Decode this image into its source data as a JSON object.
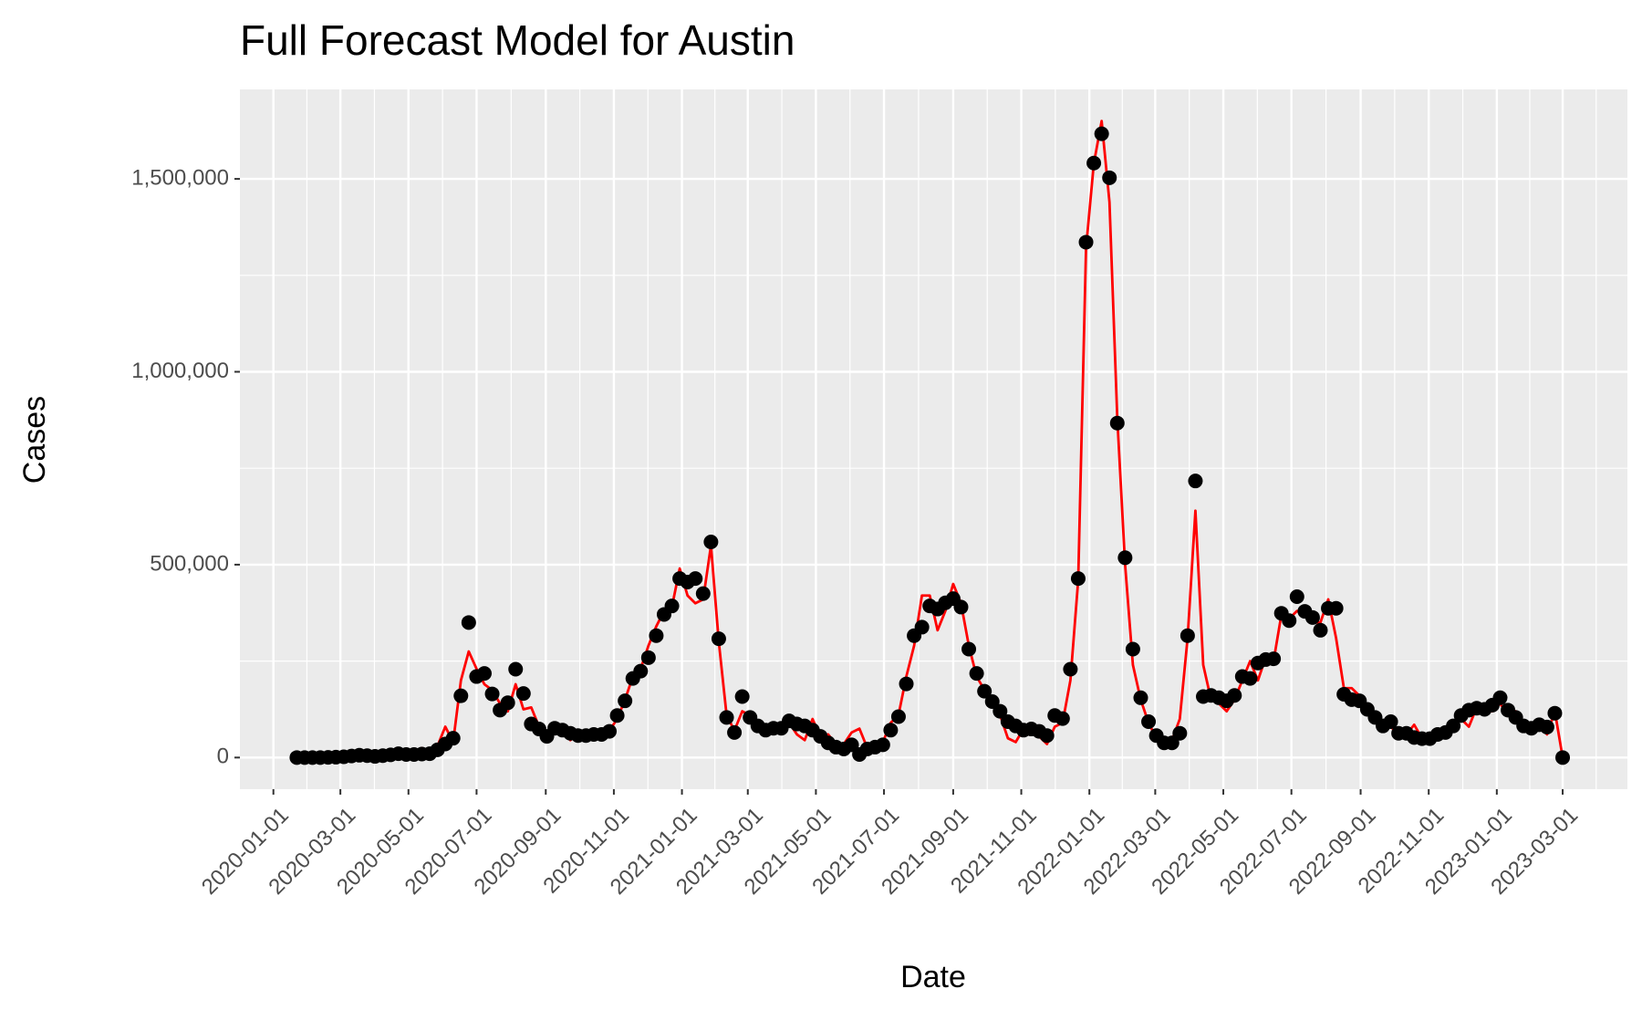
{
  "chart_data": {
    "type": "line",
    "title": "Full Forecast Model for Austin",
    "x_label": "Date",
    "y_label": "Cases",
    "x": [
      "2020-01-22",
      "2020-01-29",
      "2020-02-05",
      "2020-02-12",
      "2020-02-19",
      "2020-02-26",
      "2020-03-04",
      "2020-03-11",
      "2020-03-18",
      "2020-03-25",
      "2020-04-01",
      "2020-04-08",
      "2020-04-15",
      "2020-04-22",
      "2020-04-29",
      "2020-05-06",
      "2020-05-13",
      "2020-05-20",
      "2020-05-27",
      "2020-06-03",
      "2020-06-10",
      "2020-06-17",
      "2020-06-24",
      "2020-07-01",
      "2020-07-08",
      "2020-07-15",
      "2020-07-22",
      "2020-07-29",
      "2020-08-05",
      "2020-08-12",
      "2020-08-19",
      "2020-08-26",
      "2020-09-02",
      "2020-09-09",
      "2020-09-16",
      "2020-09-23",
      "2020-09-30",
      "2020-10-07",
      "2020-10-14",
      "2020-10-21",
      "2020-10-28",
      "2020-11-04",
      "2020-11-11",
      "2020-11-18",
      "2020-11-25",
      "2020-12-02",
      "2020-12-09",
      "2020-12-16",
      "2020-12-23",
      "2020-12-30",
      "2021-01-06",
      "2021-01-13",
      "2021-01-20",
      "2021-01-27",
      "2021-02-03",
      "2021-02-10",
      "2021-02-17",
      "2021-02-24",
      "2021-03-03",
      "2021-03-10",
      "2021-03-17",
      "2021-03-24",
      "2021-03-31",
      "2021-04-07",
      "2021-04-14",
      "2021-04-21",
      "2021-04-28",
      "2021-05-05",
      "2021-05-12",
      "2021-05-19",
      "2021-05-26",
      "2021-06-02",
      "2021-06-09",
      "2021-06-16",
      "2021-06-23",
      "2021-06-30",
      "2021-07-07",
      "2021-07-14",
      "2021-07-21",
      "2021-07-28",
      "2021-08-04",
      "2021-08-11",
      "2021-08-18",
      "2021-08-25",
      "2021-09-01",
      "2021-09-08",
      "2021-09-15",
      "2021-09-22",
      "2021-09-29",
      "2021-10-06",
      "2021-10-13",
      "2021-10-20",
      "2021-10-27",
      "2021-11-03",
      "2021-11-10",
      "2021-11-17",
      "2021-11-24",
      "2021-12-01",
      "2021-12-08",
      "2021-12-15",
      "2021-12-22",
      "2021-12-29",
      "2022-01-05",
      "2022-01-12",
      "2022-01-19",
      "2022-01-26",
      "2022-02-02",
      "2022-02-09",
      "2022-02-16",
      "2022-02-23",
      "2022-03-02",
      "2022-03-09",
      "2022-03-16",
      "2022-03-23",
      "2022-03-30",
      "2022-04-06",
      "2022-04-13",
      "2022-04-20",
      "2022-04-27",
      "2022-05-04",
      "2022-05-11",
      "2022-05-18",
      "2022-05-25",
      "2022-06-01",
      "2022-06-08",
      "2022-06-15",
      "2022-06-22",
      "2022-06-29",
      "2022-07-06",
      "2022-07-13",
      "2022-07-20",
      "2022-07-27",
      "2022-08-03",
      "2022-08-10",
      "2022-08-17",
      "2022-08-24",
      "2022-08-31",
      "2022-09-07",
      "2022-09-14",
      "2022-09-21",
      "2022-09-28",
      "2022-10-05",
      "2022-10-12",
      "2022-10-19",
      "2022-10-26",
      "2022-11-02",
      "2022-11-09",
      "2022-11-16",
      "2022-11-23",
      "2022-11-30",
      "2022-12-07",
      "2022-12-14",
      "2022-12-21",
      "2022-12-28",
      "2023-01-04",
      "2023-01-11",
      "2023-01-18",
      "2023-01-25",
      "2023-02-01",
      "2023-02-08",
      "2023-02-15",
      "2023-02-22",
      "2023-03-01"
    ],
    "series": [
      {
        "style": "line",
        "color": "#ff0000",
        "values": [
          0,
          0,
          0,
          0,
          0,
          2000,
          3000,
          5000,
          15000,
          8000,
          3000,
          5000,
          8000,
          12000,
          6000,
          10000,
          25000,
          8000,
          30000,
          80000,
          40000,
          200000,
          275000,
          230000,
          190000,
          175000,
          140000,
          120000,
          190000,
          125000,
          130000,
          80000,
          60000,
          65000,
          70000,
          45000,
          60000,
          55000,
          60000,
          55000,
          70000,
          100000,
          150000,
          210000,
          230000,
          290000,
          340000,
          380000,
          390000,
          490000,
          420000,
          400000,
          410000,
          550000,
          300000,
          110000,
          70000,
          120000,
          110000,
          90000,
          75000,
          80000,
          70000,
          90000,
          60000,
          45000,
          100000,
          55000,
          60000,
          35000,
          35000,
          65000,
          75000,
          25000,
          30000,
          40000,
          90000,
          110000,
          210000,
          290000,
          420000,
          420000,
          330000,
          380000,
          450000,
          400000,
          290000,
          210000,
          175000,
          150000,
          110000,
          50000,
          40000,
          75000,
          65000,
          55000,
          35000,
          80000,
          90000,
          200000,
          460000,
          1320000,
          1540000,
          1650000,
          1440000,
          880000,
          500000,
          240000,
          150000,
          90000,
          50000,
          40000,
          45000,
          100000,
          310000,
          640000,
          240000,
          150000,
          140000,
          120000,
          150000,
          200000,
          250000,
          200000,
          260000,
          250000,
          370000,
          360000,
          380000,
          370000,
          350000,
          350000,
          410000,
          310000,
          180000,
          180000,
          160000,
          120000,
          90000,
          80000,
          80000,
          60000,
          60000,
          85000,
          50000,
          50000,
          70000,
          80000,
          80000,
          100000,
          80000,
          130000,
          120000,
          120000,
          140000,
          110000,
          120000,
          80000,
          80000,
          90000,
          60000,
          120000,
          0
        ]
      },
      {
        "style": "points",
        "color": "#000000",
        "values": [
          0,
          0,
          0,
          0,
          500,
          1000,
          2000,
          4000,
          6000,
          5000,
          3000,
          5000,
          7000,
          10000,
          8000,
          8000,
          9000,
          10000,
          20000,
          35000,
          50000,
          160000,
          350000,
          210000,
          218000,
          165000,
          123000,
          142000,
          229000,
          166000,
          87000,
          74000,
          55000,
          76000,
          71000,
          63000,
          57000,
          57000,
          60000,
          60000,
          68000,
          109000,
          147000,
          205000,
          224000,
          259000,
          316000,
          371000,
          393000,
          464000,
          455000,
          464000,
          425000,
          559000,
          308000,
          104000,
          65000,
          158000,
          104000,
          82000,
          71000,
          76000,
          76000,
          95000,
          87000,
          82000,
          71000,
          55000,
          38000,
          27000,
          22000,
          33000,
          8000,
          22000,
          27000,
          33000,
          71000,
          106000,
          191000,
          316000,
          338000,
          393000,
          385000,
          401000,
          412000,
          390000,
          281000,
          218000,
          172000,
          145000,
          120000,
          93000,
          82000,
          71000,
          74000,
          68000,
          57000,
          109000,
          101000,
          229000,
          464000,
          1336000,
          1541000,
          1617000,
          1503000,
          867000,
          518000,
          281000,
          155000,
          93000,
          57000,
          38000,
          38000,
          63000,
          316000,
          717000,
          158000,
          161000,
          155000,
          147000,
          161000,
          210000,
          205000,
          245000,
          254000,
          256000,
          374000,
          355000,
          417000,
          379000,
          363000,
          330000,
          387000,
          387000,
          164000,
          150000,
          147000,
          125000,
          104000,
          82000,
          93000,
          63000,
          63000,
          52000,
          49000,
          49000,
          60000,
          65000,
          82000,
          109000,
          123000,
          128000,
          125000,
          136000,
          155000,
          123000,
          104000,
          82000,
          76000,
          85000,
          79000,
          115000,
          0
        ]
      }
    ],
    "xlim": [
      "2019-12-02",
      "2023-04-28"
    ],
    "xticks": [
      "2020-01-01",
      "2020-03-01",
      "2020-05-01",
      "2020-07-01",
      "2020-09-01",
      "2020-11-01",
      "2021-01-01",
      "2021-03-01",
      "2021-05-01",
      "2021-07-01",
      "2021-09-01",
      "2021-11-01",
      "2022-01-01",
      "2022-03-01",
      "2022-05-01",
      "2022-07-01",
      "2022-09-01",
      "2022-11-01",
      "2023-01-01",
      "2023-03-01"
    ],
    "ylim": [
      -82000,
      1732000
    ],
    "yticks": [
      0,
      {
        "value": 500000,
        "label": "500,000"
      },
      {
        "value": 1000000,
        "label": "1,000,000"
      },
      {
        "value": 1500000,
        "label": "1,500,000"
      }
    ],
    "grid": true,
    "panel_color": "#ebebeb"
  }
}
